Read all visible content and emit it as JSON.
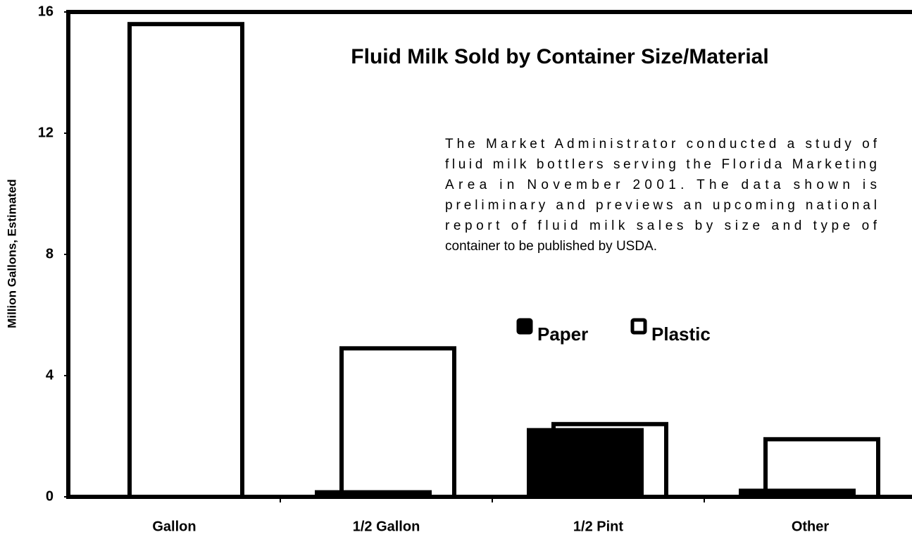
{
  "chart_data": {
    "type": "bar",
    "title": "Fluid Milk Sold by Container Size/Material",
    "annotation": [
      "The Market Administrator conducted a study of",
      "fluid milk bottlers serving the Florida Marketing",
      "Area in November 2001.  The data shown is",
      "preliminary and previews an upcoming national",
      "report of fluid milk sales by size and type of",
      "container to be published by USDA."
    ],
    "y_label": "Million Gallons, Estimated",
    "categories": [
      "Gallon",
      "1/2 Gallon",
      "1/2 Pint",
      "Other"
    ],
    "series": [
      {
        "name": "Paper",
        "color": "#000000",
        "values": [
          0,
          0.15,
          2.2,
          0.2
        ]
      },
      {
        "name": "Plastic",
        "color": "#ffffff",
        "values": [
          15.6,
          4.9,
          2.4,
          1.9
        ]
      }
    ],
    "ylim": [
      0,
      16
    ],
    "yticks": [
      0,
      4,
      8,
      12,
      16
    ]
  }
}
